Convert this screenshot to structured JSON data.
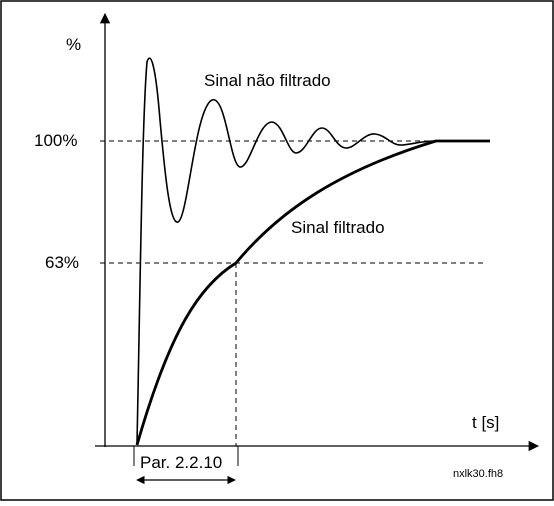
{
  "axes": {
    "y_unit": "%",
    "x_unit": "t [s]"
  },
  "levels": {
    "full": "100%",
    "partial": "63%"
  },
  "curves": {
    "unfiltered": "Sinal não filtrado",
    "filtered": "Sinal filtrado"
  },
  "parameter": {
    "label": "Par. 2.2.10"
  },
  "file": {
    "name": "nxlk30.fh8"
  }
}
